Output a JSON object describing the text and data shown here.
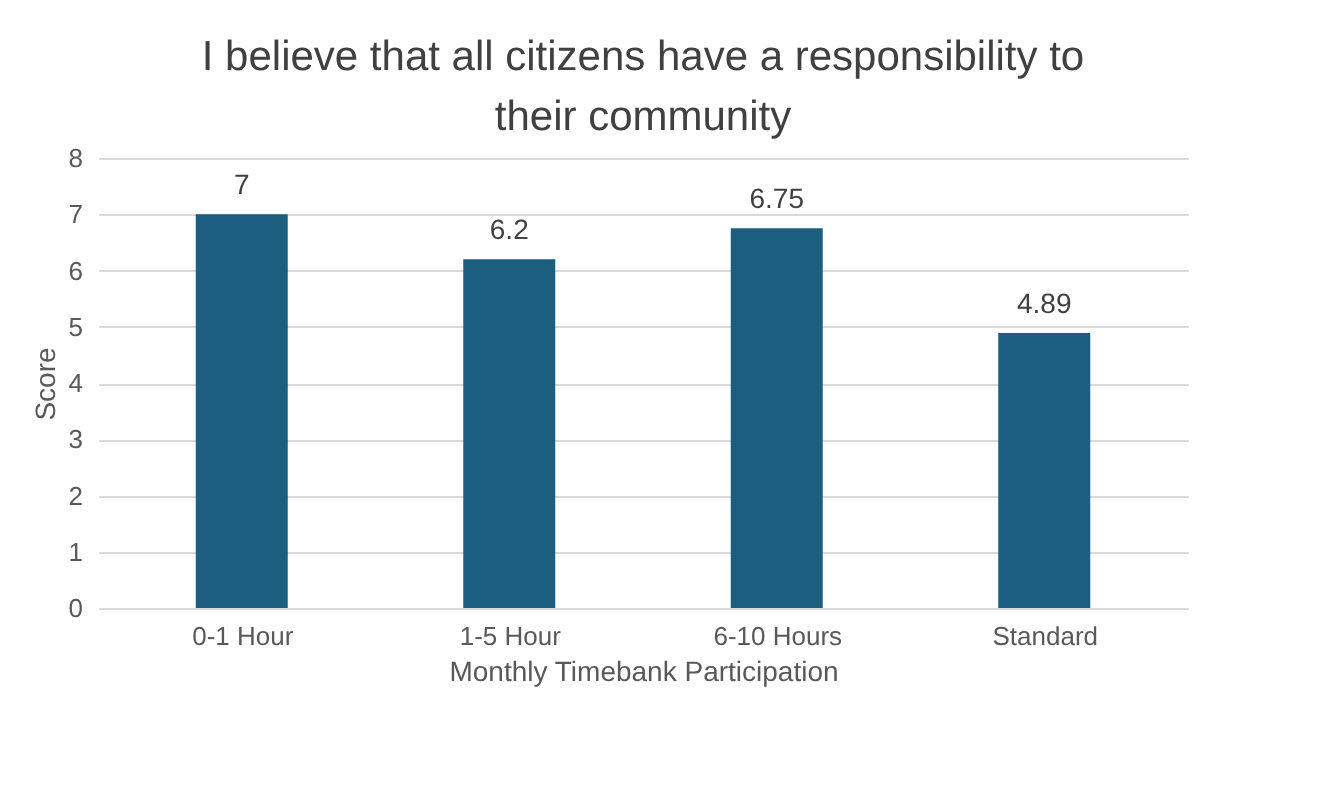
{
  "chart_data": {
    "type": "bar",
    "title": "I believe that all citizens have a responsibility to their community",
    "categories": [
      "0-1 Hour",
      "1-5 Hour",
      "6-10 Hours",
      "Standard"
    ],
    "values": [
      7,
      6.2,
      6.75,
      4.89
    ],
    "color": "#1b5e80",
    "xlabel": "Monthly Timebank Participation",
    "ylabel": "Score",
    "ylim": [
      0,
      8
    ],
    "yticks": [
      0,
      1,
      2,
      3,
      4,
      5,
      6,
      7,
      8
    ],
    "grid": "y",
    "data_labels": true
  }
}
